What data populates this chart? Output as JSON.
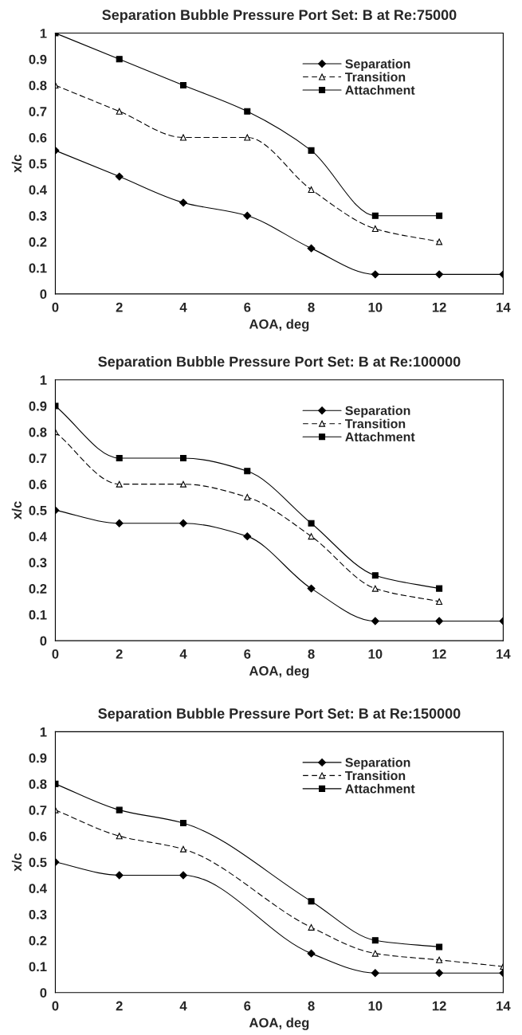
{
  "chart_data": [
    {
      "type": "line",
      "title": "Separation Bubble Pressure Port Set: B at Re:75000",
      "xlabel": "AOA, deg",
      "ylabel": "x/c",
      "xlim": [
        0,
        14
      ],
      "xticks": [
        0,
        2,
        4,
        6,
        8,
        10,
        12,
        14
      ],
      "ylim": [
        0,
        1
      ],
      "yticks": [
        0,
        0.1,
        0.2,
        0.3,
        0.4,
        0.5,
        0.6,
        0.7,
        0.8,
        0.9,
        1
      ],
      "grid": false,
      "legend": "top right",
      "series": [
        {
          "name": "Separation",
          "color": "#000000",
          "marker": "diamond",
          "line_style": "solid",
          "x": [
            0,
            2,
            4,
            6,
            8,
            10,
            12,
            14
          ],
          "values": [
            0.55,
            0.45,
            0.35,
            0.3,
            0.175,
            0.075,
            0.075,
            0.075
          ]
        },
        {
          "name": "Transition",
          "color": "#000000",
          "marker": "triangle",
          "line_style": "dashed",
          "x": [
            0,
            2,
            4,
            6,
            8,
            10,
            12
          ],
          "values": [
            0.8,
            0.7,
            0.6,
            0.6,
            0.4,
            0.25,
            0.2
          ]
        },
        {
          "name": "Attachment",
          "color": "#000000",
          "marker": "square",
          "line_style": "solid",
          "x": [
            0,
            2,
            4,
            6,
            8,
            10,
            12
          ],
          "values": [
            1,
            0.9,
            0.8,
            0.7,
            0.55,
            0.3,
            0.3
          ]
        }
      ]
    },
    {
      "type": "line",
      "title": "Separation Bubble Pressure Port Set: B at Re:100000",
      "xlabel": "AOA, deg",
      "ylabel": "x/c",
      "xlim": [
        0,
        14
      ],
      "xticks": [
        0,
        2,
        4,
        6,
        8,
        10,
        12,
        14
      ],
      "ylim": [
        0,
        1
      ],
      "yticks": [
        0,
        0.1,
        0.2,
        0.3,
        0.4,
        0.5,
        0.6,
        0.7,
        0.8,
        0.9,
        1
      ],
      "grid": false,
      "legend": "top right",
      "series": [
        {
          "name": "Separation",
          "color": "#000000",
          "marker": "diamond",
          "line_style": "solid",
          "x": [
            0,
            2,
            4,
            6,
            8,
            10,
            12,
            14
          ],
          "values": [
            0.5,
            0.45,
            0.45,
            0.4,
            0.2,
            0.075,
            0.075,
            0.075
          ]
        },
        {
          "name": "Transition",
          "color": "#000000",
          "marker": "triangle",
          "line_style": "dashed",
          "x": [
            0,
            2,
            4,
            6,
            8,
            10,
            12
          ],
          "values": [
            0.8,
            0.6,
            0.6,
            0.55,
            0.4,
            0.2,
            0.15
          ]
        },
        {
          "name": "Attachment",
          "color": "#000000",
          "marker": "square",
          "line_style": "solid",
          "x": [
            0,
            2,
            4,
            6,
            8,
            10,
            12
          ],
          "values": [
            0.9,
            0.7,
            0.7,
            0.65,
            0.45,
            0.25,
            0.2
          ]
        }
      ]
    },
    {
      "type": "line",
      "title": "Separation Bubble Pressure Port Set: B at Re:150000",
      "xlabel": "AOA, deg",
      "ylabel": "x/c",
      "xlim": [
        0,
        14
      ],
      "xticks": [
        0,
        2,
        4,
        6,
        8,
        10,
        12,
        14
      ],
      "ylim": [
        0,
        1
      ],
      "yticks": [
        0,
        0.1,
        0.2,
        0.3,
        0.4,
        0.5,
        0.6,
        0.7,
        0.8,
        0.9,
        1
      ],
      "grid": false,
      "legend": "top right",
      "series": [
        {
          "name": "Separation",
          "color": "#000000",
          "marker": "diamond",
          "line_style": "solid",
          "x": [
            0,
            2,
            4,
            8,
            10,
            12,
            14
          ],
          "values": [
            0.5,
            0.45,
            0.45,
            0.15,
            0.075,
            0.075,
            0.075
          ]
        },
        {
          "name": "Transition",
          "color": "#000000",
          "marker": "triangle",
          "line_style": "dashed",
          "x": [
            0,
            2,
            4,
            8,
            10,
            12,
            14
          ],
          "values": [
            0.7,
            0.6,
            0.55,
            0.25,
            0.15,
            0.125,
            0.1
          ]
        },
        {
          "name": "Attachment",
          "color": "#000000",
          "marker": "square",
          "line_style": "solid",
          "x": [
            0,
            2,
            4,
            8,
            10,
            12
          ],
          "values": [
            0.8,
            0.7,
            0.65,
            0.35,
            0.2,
            0.175
          ]
        }
      ]
    }
  ]
}
